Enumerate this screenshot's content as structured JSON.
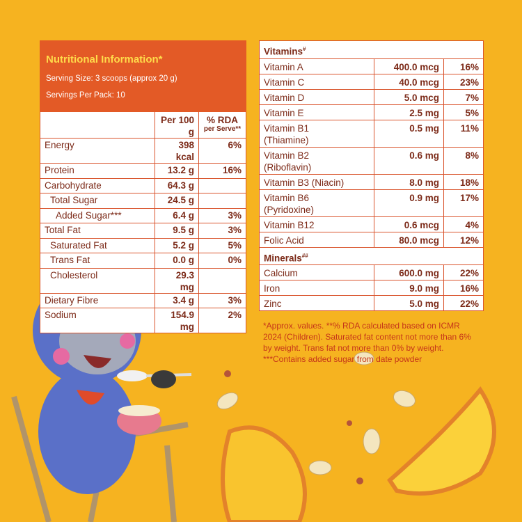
{
  "nutrition": {
    "title": "Nutritional Information*",
    "serving_size": "Serving Size: 3 scoops (approx 20 g)",
    "servings_per_pack": "Servings Per Pack: 10",
    "col_per100": "Per 100 g",
    "col_rda": "% RDA",
    "col_rda_sub": "per Serve**",
    "rows": [
      [
        "Energy",
        "398 kcal",
        "6%"
      ],
      [
        "Protein",
        "13.2 g",
        "16%"
      ],
      [
        "Carbohydrate",
        "64.3 g"
      ],
      [
        "Total Sugar",
        "24.5 g"
      ],
      [
        "Added Sugar***",
        "6.4 g",
        "3%"
      ],
      [
        "Total Fat",
        "9.5 g",
        "3%"
      ],
      [
        "Saturated Fat",
        "5.2 g",
        "5%"
      ],
      [
        "Trans Fat",
        "0.0 g",
        "0%"
      ],
      [
        "Cholesterol",
        "29.3 mg"
      ],
      [
        "Dietary Fibre",
        "3.4 g",
        "3%"
      ],
      [
        "Sodium",
        "154.9 mg",
        "2%"
      ]
    ]
  },
  "vitamins": {
    "title": "Vitamins",
    "mark": "#",
    "rows": [
      [
        "Vitamin A",
        "400.0 mcg",
        "16%"
      ],
      [
        "Vitamin C",
        "40.0 mcg",
        "23%"
      ],
      [
        "Vitamin D",
        "5.0 mcg",
        "7%"
      ],
      [
        "Vitamin E",
        "2.5 mg",
        "5%"
      ],
      [
        "Vitamin B1\n(Thiamine)",
        "0.5 mg",
        "11%"
      ],
      [
        "Vitamin B2\n(Riboflavin)",
        "0.6 mg",
        "8%"
      ],
      [
        "Vitamin B3 (Niacin)",
        "8.0 mg",
        "18%"
      ],
      [
        "Vitamin B6\n(Pyridoxine)",
        "0.9 mg",
        "17%"
      ],
      [
        "Vitamin B12",
        "0.6 mcg",
        "4%"
      ],
      [
        "Folic Acid",
        "80.0 mcg",
        "12%"
      ]
    ]
  },
  "minerals": {
    "title": "Minerals",
    "mark": "##",
    "rows": [
      [
        "Calcium",
        "600.0 mg",
        "22%"
      ],
      [
        "Iron",
        "9.0 mg",
        "16%"
      ],
      [
        "Zinc",
        "5.0 mg",
        "22%"
      ]
    ]
  },
  "footnotes": [
    "*Approx. values. **% RDA calculated based on ICMR 2024 (Children). Saturated fat content not more than 6% by weight. Trans fat not more than 0% by weight.",
    "***Contains added sugar from date powder"
  ]
}
